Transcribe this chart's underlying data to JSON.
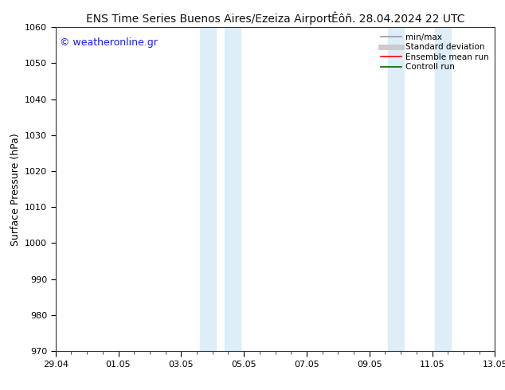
{
  "title_left": "ENS Time Series Buenos Aires/Ezeiza Airport",
  "title_right": "Êôñ. 28.04.2024 22 UTC",
  "ylabel": "Surface Pressure (hPa)",
  "ylim": [
    970,
    1060
  ],
  "yticks": [
    970,
    980,
    990,
    1000,
    1010,
    1020,
    1030,
    1040,
    1050,
    1060
  ],
  "xticks": [
    "29.04",
    "01.05",
    "03.05",
    "05.05",
    "07.05",
    "09.05",
    "11.05",
    "13.05"
  ],
  "xtick_positions": [
    0,
    2,
    4,
    6,
    8,
    10,
    12,
    14
  ],
  "xlim": [
    0,
    14
  ],
  "shaded_regions": [
    {
      "start": 4.6,
      "end": 5.1,
      "color": "#ddeef8"
    },
    {
      "start": 5.4,
      "end": 5.9,
      "color": "#ddeef8"
    },
    {
      "start": 10.6,
      "end": 11.1,
      "color": "#ddeef8"
    },
    {
      "start": 12.1,
      "end": 12.6,
      "color": "#ddeef8"
    }
  ],
  "watermark": "© weatheronline.gr",
  "watermark_color": "#1a1aff",
  "legend_entries": [
    {
      "label": "min/max",
      "color": "#999999",
      "lw": 1.2
    },
    {
      "label": "Standard deviation",
      "color": "#cccccc",
      "lw": 5
    },
    {
      "label": "Ensemble mean run",
      "color": "#ff0000",
      "lw": 1.2
    },
    {
      "label": "Controll run",
      "color": "#006600",
      "lw": 1.2
    }
  ],
  "bg_color": "#ffffff",
  "title_fontsize": 10,
  "ylabel_fontsize": 9,
  "tick_fontsize": 8,
  "legend_fontsize": 7.5,
  "watermark_fontsize": 9
}
